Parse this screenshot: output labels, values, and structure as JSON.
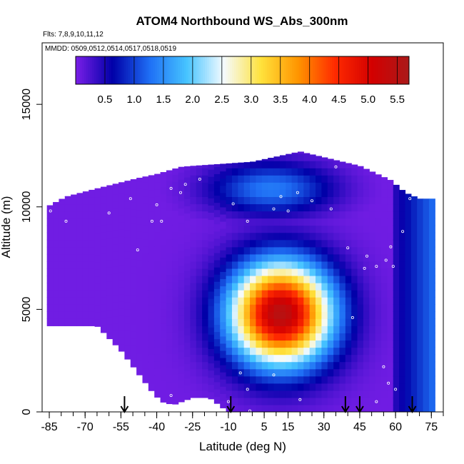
{
  "chart_data": {
    "type": "heatmap",
    "title": "ATOM4 Northbound WS_Abs_300nm",
    "flights_label": "Flts: 7,8,9,10,11,12",
    "dates_label": "MMDD: 0509,0512,0514,0517,0518,0519",
    "xlabel": "Latitude (deg N)",
    "ylabel": "Altitude (m)",
    "xlim": [
      -88,
      80
    ],
    "ylim": [
      0,
      18000
    ],
    "x_ticks": [
      -85,
      -70,
      -55,
      -40,
      -25,
      -10,
      5,
      15,
      30,
      45,
      60,
      75
    ],
    "y_ticks": [
      0,
      5000,
      10000,
      15000
    ],
    "colorbar": {
      "range": [
        0.0,
        5.7
      ],
      "ticks": [
        "0.5",
        "1.0",
        "1.5",
        "2.0",
        "2.5",
        "3.0",
        "3.5",
        "4.0",
        "4.5",
        "5.0",
        "5.5"
      ],
      "colors": [
        "#7a1fe8",
        "#0000a8",
        "#1f6ff5",
        "#46c4ff",
        "#f5fbff",
        "#ffe23c",
        "#ff9500",
        "#ff2a00",
        "#d30000",
        "#aa1a1a"
      ]
    },
    "arrows_latitude": [
      -53.5,
      -9,
      39,
      45,
      67
    ],
    "grid": false
  }
}
